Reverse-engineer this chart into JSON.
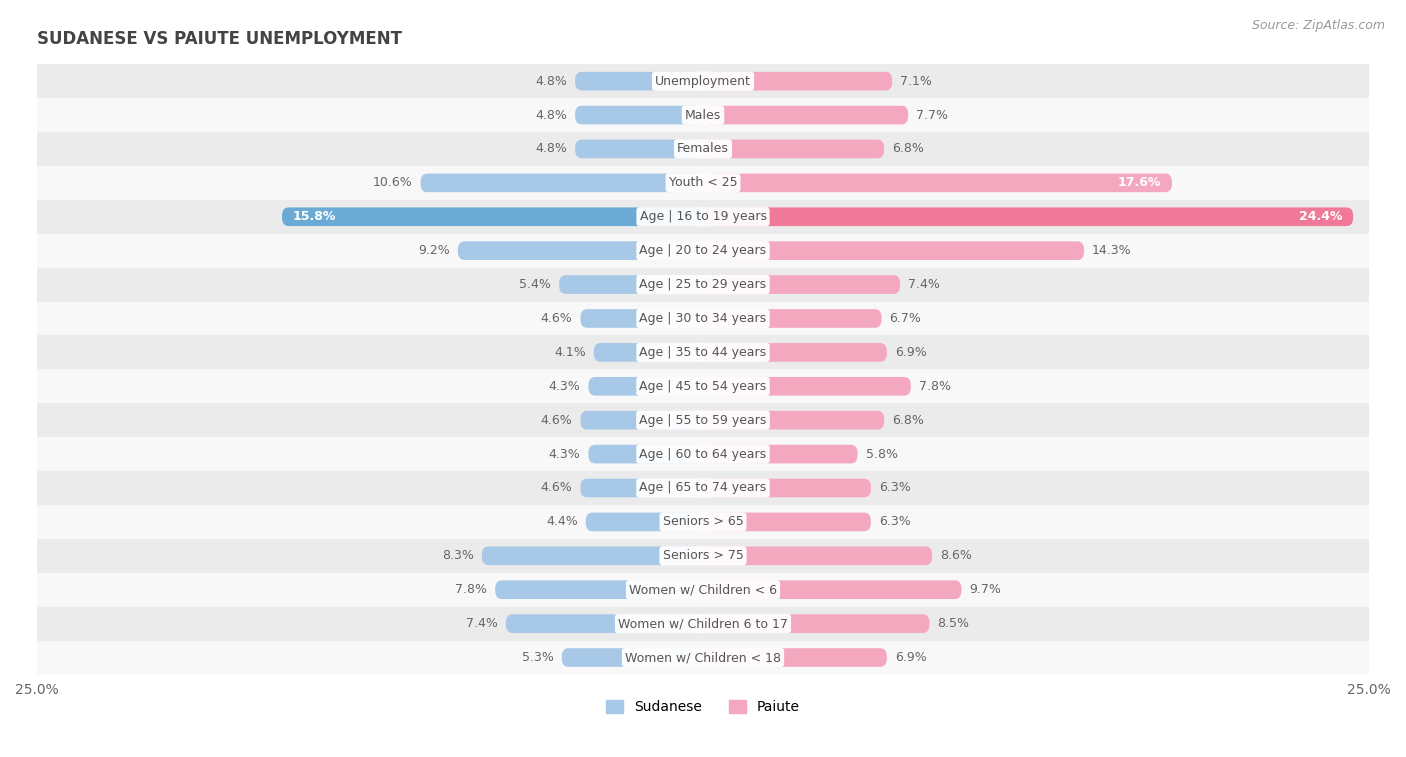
{
  "title": "SUDANESE VS PAIUTE UNEMPLOYMENT",
  "source": "Source: ZipAtlas.com",
  "categories": [
    "Unemployment",
    "Males",
    "Females",
    "Youth < 25",
    "Age | 16 to 19 years",
    "Age | 20 to 24 years",
    "Age | 25 to 29 years",
    "Age | 30 to 34 years",
    "Age | 35 to 44 years",
    "Age | 45 to 54 years",
    "Age | 55 to 59 years",
    "Age | 60 to 64 years",
    "Age | 65 to 74 years",
    "Seniors > 65",
    "Seniors > 75",
    "Women w/ Children < 6",
    "Women w/ Children 6 to 17",
    "Women w/ Children < 18"
  ],
  "sudanese": [
    4.8,
    4.8,
    4.8,
    10.6,
    15.8,
    9.2,
    5.4,
    4.6,
    4.1,
    4.3,
    4.6,
    4.3,
    4.6,
    4.4,
    8.3,
    7.8,
    7.4,
    5.3
  ],
  "paiute": [
    7.1,
    7.7,
    6.8,
    17.6,
    24.4,
    14.3,
    7.4,
    6.7,
    6.9,
    7.8,
    6.8,
    5.8,
    6.3,
    6.3,
    8.6,
    9.7,
    8.5,
    6.9
  ],
  "sudanese_color": "#a8c8e8",
  "paiute_color": "#f4a8c0",
  "sudanese_color_dark": "#6aaad4",
  "paiute_color_dark": "#f07898",
  "row_bg_odd": "#ebebeb",
  "row_bg_even": "#f8f8f8",
  "xlim": 25.0,
  "bar_height": 0.55,
  "label_fontsize": 9.0,
  "category_fontsize": 9.0,
  "title_fontsize": 12,
  "legend_fontsize": 10,
  "highlight_rows": [
    3,
    4
  ],
  "white_label_rows": [
    3,
    4
  ]
}
